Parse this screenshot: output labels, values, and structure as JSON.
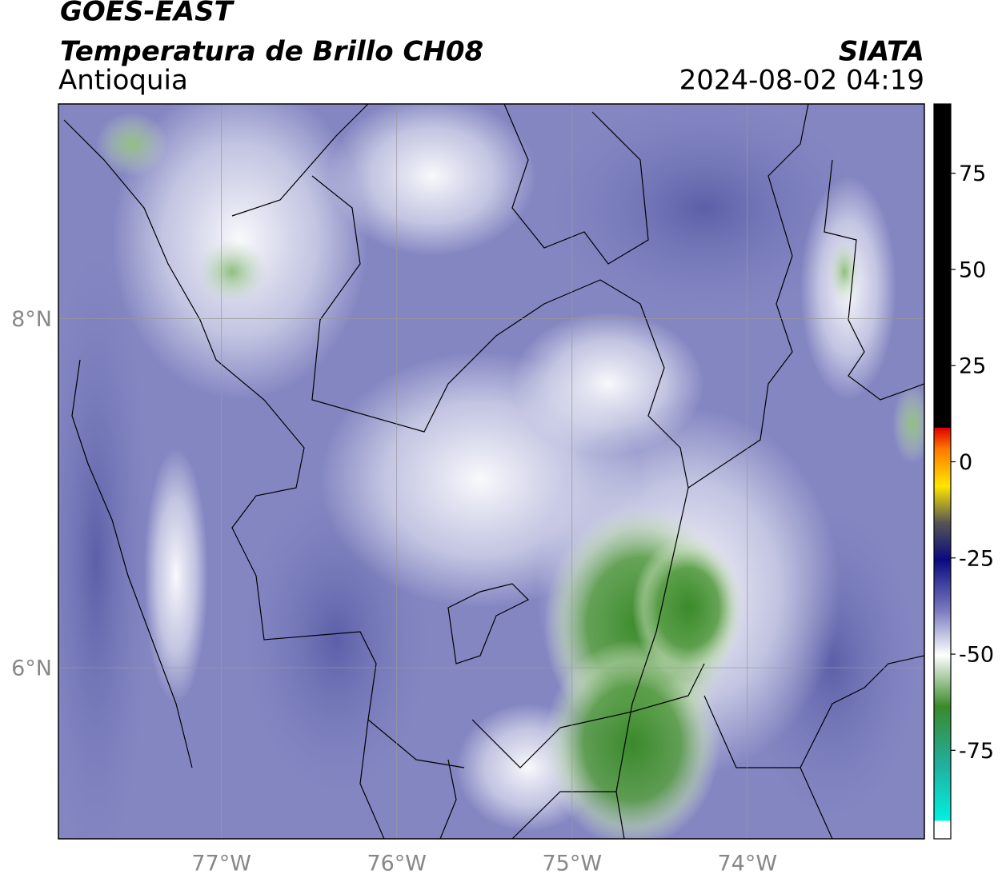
{
  "header": {
    "satellite": "GOES-EAST",
    "product": "Temperatura de Brillo CH08",
    "region": "Antioquia",
    "source": "SIATA",
    "datetime": "2024-08-02 04:19"
  },
  "map": {
    "xlim": [
      -77.93,
      -72.99
    ],
    "ylim": [
      5.02,
      9.23
    ],
    "xticks": [
      {
        "value": -77,
        "label": "77°W"
      },
      {
        "value": -76,
        "label": "76°W"
      },
      {
        "value": -75,
        "label": "75°W"
      },
      {
        "value": -74,
        "label": "74°W"
      }
    ],
    "yticks": [
      {
        "value": 8,
        "label": "8°N"
      },
      {
        "value": 6,
        "label": "6°N"
      }
    ]
  },
  "colorbar": {
    "lim": [
      -98,
      93
    ],
    "ticks": [
      75,
      50,
      25,
      0,
      -25,
      -50,
      -75
    ]
  }
}
